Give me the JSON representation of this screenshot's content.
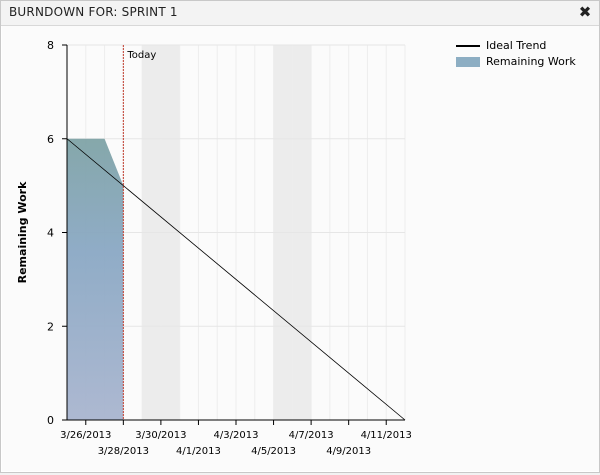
{
  "window": {
    "title": "BURNDOWN FOR: SPRINT 1",
    "close_icon": "close-icon",
    "close_glyph": "✖"
  },
  "chart_data": {
    "type": "area",
    "title": "",
    "xlabel": "",
    "ylabel": "Remaining Work",
    "ylim": [
      0,
      8
    ],
    "yticks": [
      0,
      2,
      4,
      6,
      8
    ],
    "xlim": [
      "2013-03-25",
      "2013-04-12"
    ],
    "xtick_labels": [
      "3/26/2013",
      "3/28/2013",
      "3/30/2013",
      "4/1/2013",
      "4/3/2013",
      "4/5/2013",
      "4/7/2013",
      "4/9/2013",
      "4/11/2013"
    ],
    "x_dates": [
      "2013-03-25",
      "2013-03-26",
      "2013-03-27",
      "2013-03-28",
      "2013-03-29",
      "2013-03-30",
      "2013-03-31",
      "2013-04-01",
      "2013-04-02",
      "2013-04-03",
      "2013-04-04",
      "2013-04-05",
      "2013-04-06",
      "2013-04-07",
      "2013-04-08",
      "2013-04-09",
      "2013-04-10",
      "2013-04-11",
      "2013-04-12"
    ],
    "weekend_bands": [
      [
        "2013-03-29",
        "2013-03-31"
      ],
      [
        "2013-04-05",
        "2013-04-07"
      ]
    ],
    "today": {
      "label": "Today",
      "date": "2013-03-28"
    },
    "series": [
      {
        "name": "Remaining Work",
        "kind": "area",
        "color": "#8daec3",
        "points": [
          [
            "2013-03-25",
            6
          ],
          [
            "2013-03-27",
            6
          ],
          [
            "2013-03-28",
            5
          ]
        ]
      },
      {
        "name": "Ideal Trend",
        "kind": "line",
        "color": "#000000",
        "points": [
          [
            "2013-03-25",
            6
          ],
          [
            "2013-04-12",
            0
          ]
        ]
      }
    ],
    "legend_position": "top-right",
    "grid": true
  },
  "legend": {
    "items": [
      {
        "label": "Ideal Trend",
        "kind": "line"
      },
      {
        "label": "Remaining Work",
        "kind": "area"
      }
    ]
  }
}
